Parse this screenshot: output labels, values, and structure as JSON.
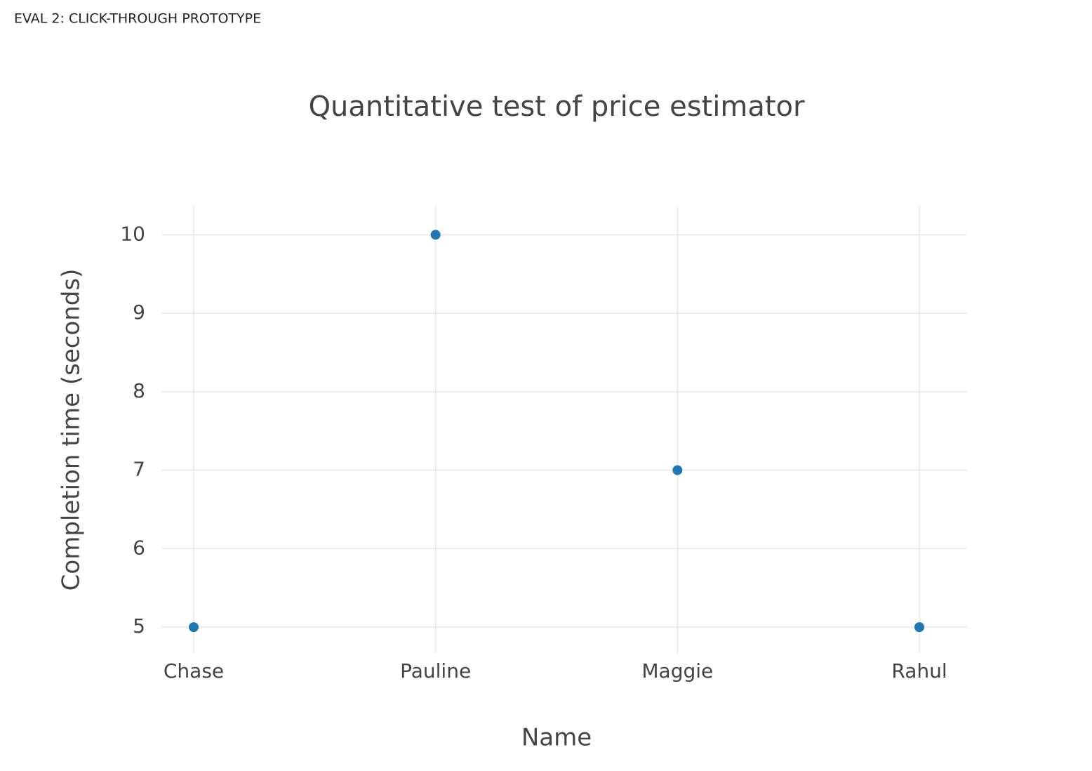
{
  "header": {
    "label": "EVAL 2: CLICK-THROUGH PROTOTYPE"
  },
  "chart_data": {
    "type": "scatter",
    "title": "Quantitative test of price estimator",
    "x_label": "Name",
    "y_label": "Completion time (seconds)",
    "categories": [
      "Chase",
      "Pauline",
      "Maggie",
      "Rahul"
    ],
    "values": [
      5,
      10,
      7,
      5
    ],
    "color": "#1f77b4",
    "ylim": [
      4.67,
      10.37
    ],
    "yticks": [
      5,
      6,
      7,
      8,
      9,
      10
    ],
    "grid": true
  }
}
